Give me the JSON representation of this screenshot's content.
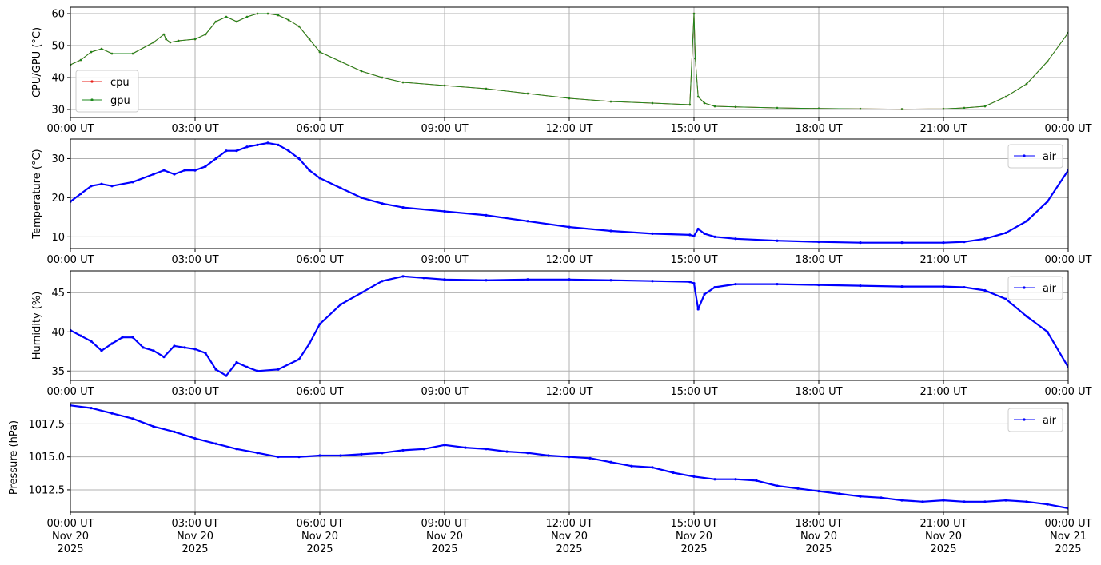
{
  "figure": {
    "background": "#ffffff",
    "grid_color": "#b0b0b0",
    "axis_color": "#000000"
  },
  "chart_data": [
    {
      "type": "line",
      "ylabel": "CPU/GPU (°C)",
      "ylim": [
        27.5,
        62
      ],
      "yticks": [
        30,
        40,
        50,
        60
      ],
      "xticks": [
        "00:00 UT",
        "03:00 UT",
        "06:00 UT",
        "09:00 UT",
        "12:00 UT",
        "15:00 UT",
        "18:00 UT",
        "21:00 UT",
        "00:00 UT"
      ],
      "grid": true,
      "legend": "bottom-left",
      "x_hours": [
        0,
        0.25,
        0.5,
        0.75,
        1,
        1.5,
        2,
        2.25,
        2.3,
        2.4,
        2.6,
        3,
        3.25,
        3.5,
        3.75,
        4,
        4.25,
        4.5,
        4.75,
        5,
        5.25,
        5.5,
        5.75,
        6,
        6.5,
        7,
        7.5,
        8,
        9,
        10,
        11,
        12,
        13,
        14,
        14.9,
        15,
        15.03,
        15.1,
        15.25,
        15.5,
        16,
        17,
        18,
        19,
        20,
        21,
        21.5,
        22,
        22.5,
        23,
        23.5,
        24
      ],
      "series": [
        {
          "name": "cpu",
          "color": "#e8221b",
          "values": [
            44,
            45.5,
            48,
            49,
            47.5,
            47.5,
            51,
            53.5,
            52,
            51,
            51.5,
            52,
            53.5,
            57.5,
            59,
            57.5,
            59,
            60,
            60,
            59.5,
            58,
            56,
            52,
            48,
            45,
            42,
            40,
            38.5,
            37.5,
            36.5,
            35,
            33.5,
            32.5,
            32,
            31.5,
            60,
            46,
            34,
            32,
            31,
            30.8,
            30.5,
            30.3,
            30.2,
            30.1,
            30.2,
            30.5,
            31,
            34,
            38,
            45,
            54
          ]
        },
        {
          "name": "gpu",
          "color": "#1e8a1e",
          "values": [
            44,
            45.5,
            48,
            49,
            47.5,
            47.5,
            51,
            53.5,
            52,
            51,
            51.5,
            52,
            53.5,
            57.5,
            59,
            57.5,
            59,
            60,
            60,
            59.5,
            58,
            56,
            52,
            48,
            45,
            42,
            40,
            38.5,
            37.5,
            36.5,
            35,
            33.5,
            32.5,
            32,
            31.5,
            60,
            46,
            34,
            32,
            31,
            30.8,
            30.5,
            30.3,
            30.2,
            30.1,
            30.2,
            30.5,
            31,
            34,
            38,
            45,
            54
          ]
        }
      ]
    },
    {
      "type": "line",
      "ylabel": "Temperature (°C)",
      "ylim": [
        7,
        35
      ],
      "yticks": [
        10,
        20,
        30
      ],
      "xticks": [
        "00:00 UT",
        "03:00 UT",
        "06:00 UT",
        "09:00 UT",
        "12:00 UT",
        "15:00 UT",
        "18:00 UT",
        "21:00 UT",
        "00:00 UT"
      ],
      "grid": true,
      "legend": "top-right",
      "x_hours": [
        0,
        0.25,
        0.5,
        0.75,
        1,
        1.5,
        2,
        2.25,
        2.5,
        2.75,
        3,
        3.25,
        3.5,
        3.75,
        4,
        4.25,
        4.5,
        4.75,
        5,
        5.25,
        5.5,
        5.75,
        6,
        6.5,
        7,
        7.5,
        8,
        9,
        10,
        11,
        12,
        13,
        14,
        14.9,
        15,
        15.1,
        15.25,
        15.5,
        16,
        17,
        18,
        19,
        20,
        21,
        21.5,
        22,
        22.5,
        23,
        23.5,
        24
      ],
      "series": [
        {
          "name": "air",
          "color": "#0000ff",
          "values": [
            19,
            21,
            23,
            23.5,
            23,
            24,
            26,
            27,
            26,
            27,
            27,
            28,
            30,
            32,
            32,
            33,
            33.5,
            34,
            33.5,
            32,
            30,
            27,
            25,
            22.5,
            20,
            18.5,
            17.5,
            16.5,
            15.5,
            14,
            12.5,
            11.5,
            10.8,
            10.5,
            10.2,
            12,
            10.8,
            10,
            9.5,
            9,
            8.7,
            8.5,
            8.5,
            8.5,
            8.7,
            9.5,
            11,
            14,
            19,
            27
          ]
        }
      ]
    },
    {
      "type": "line",
      "ylabel": "Humidity (%)",
      "ylim": [
        33.8,
        47.8
      ],
      "yticks": [
        35,
        40,
        45
      ],
      "xticks": [
        "00:00 UT",
        "03:00 UT",
        "06:00 UT",
        "09:00 UT",
        "12:00 UT",
        "15:00 UT",
        "18:00 UT",
        "21:00 UT",
        "00:00 UT"
      ],
      "grid": true,
      "legend": "top-right",
      "x_hours": [
        0,
        0.25,
        0.5,
        0.75,
        1,
        1.25,
        1.5,
        1.75,
        2,
        2.25,
        2.5,
        2.75,
        3,
        3.25,
        3.5,
        3.75,
        4,
        4.25,
        4.5,
        5,
        5.5,
        5.75,
        6,
        6.5,
        7,
        7.5,
        8,
        8.5,
        9,
        10,
        11,
        12,
        13,
        14,
        14.9,
        15,
        15.1,
        15.25,
        15.5,
        16,
        17,
        18,
        19,
        20,
        21,
        21.5,
        22,
        22.5,
        23,
        23.5,
        24
      ],
      "series": [
        {
          "name": "air",
          "color": "#0000ff",
          "values": [
            40.2,
            39.5,
            38.8,
            37.6,
            38.5,
            39.3,
            39.3,
            38,
            37.6,
            36.8,
            38.2,
            38,
            37.8,
            37.3,
            35.2,
            34.4,
            36.1,
            35.5,
            35,
            35.2,
            36.5,
            38.5,
            41,
            43.5,
            45,
            46.5,
            47.1,
            46.9,
            46.7,
            46.6,
            46.7,
            46.7,
            46.6,
            46.5,
            46.4,
            46.2,
            42.9,
            44.8,
            45.7,
            46.1,
            46.1,
            46,
            45.9,
            45.8,
            45.8,
            45.7,
            45.3,
            44.2,
            42,
            40,
            35.5
          ]
        }
      ]
    },
    {
      "type": "line",
      "ylabel": "Pressure (hPa)",
      "ylim": [
        1010.8,
        1019.1
      ],
      "yticks": [
        1012.5,
        1015.0,
        1017.5
      ],
      "ytick_labels": [
        "1012.5",
        "1015.0",
        "1017.5"
      ],
      "xticks": [
        "00:00 UT\nNov 20\n2025",
        "03:00 UT\nNov 20\n2025",
        "06:00 UT\nNov 20\n2025",
        "09:00 UT\nNov 20\n2025",
        "12:00 UT\nNov 20\n2025",
        "15:00 UT\nNov 20\n2025",
        "18:00 UT\nNov 20\n2025",
        "21:00 UT\nNov 20\n2025",
        "00:00 UT\nNov 21\n2025"
      ],
      "grid": true,
      "legend": "top-right",
      "x_hours": [
        0,
        0.5,
        1,
        1.5,
        2,
        2.5,
        3,
        3.5,
        4,
        4.5,
        5,
        5.5,
        6,
        6.5,
        7,
        7.5,
        8,
        8.5,
        9,
        9.5,
        10,
        10.5,
        11,
        11.5,
        12,
        12.5,
        13,
        13.5,
        14,
        14.5,
        15,
        15.5,
        16,
        16.5,
        17,
        17.5,
        18,
        18.5,
        19,
        19.5,
        20,
        20.5,
        21,
        21.5,
        22,
        22.5,
        23,
        23.5,
        24
      ],
      "series": [
        {
          "name": "air",
          "color": "#0000ff",
          "values": [
            1018.9,
            1018.7,
            1018.3,
            1017.9,
            1017.3,
            1016.9,
            1016.4,
            1016.0,
            1015.6,
            1015.3,
            1015.0,
            1015.0,
            1015.1,
            1015.1,
            1015.2,
            1015.3,
            1015.5,
            1015.6,
            1015.9,
            1015.7,
            1015.6,
            1015.4,
            1015.3,
            1015.1,
            1015.0,
            1014.9,
            1014.6,
            1014.3,
            1014.2,
            1013.8,
            1013.5,
            1013.3,
            1013.3,
            1013.2,
            1012.8,
            1012.6,
            1012.4,
            1012.2,
            1012.0,
            1011.9,
            1011.7,
            1011.6,
            1011.7,
            1011.6,
            1011.6,
            1011.7,
            1011.6,
            1011.4,
            1011.1
          ]
        }
      ]
    }
  ]
}
